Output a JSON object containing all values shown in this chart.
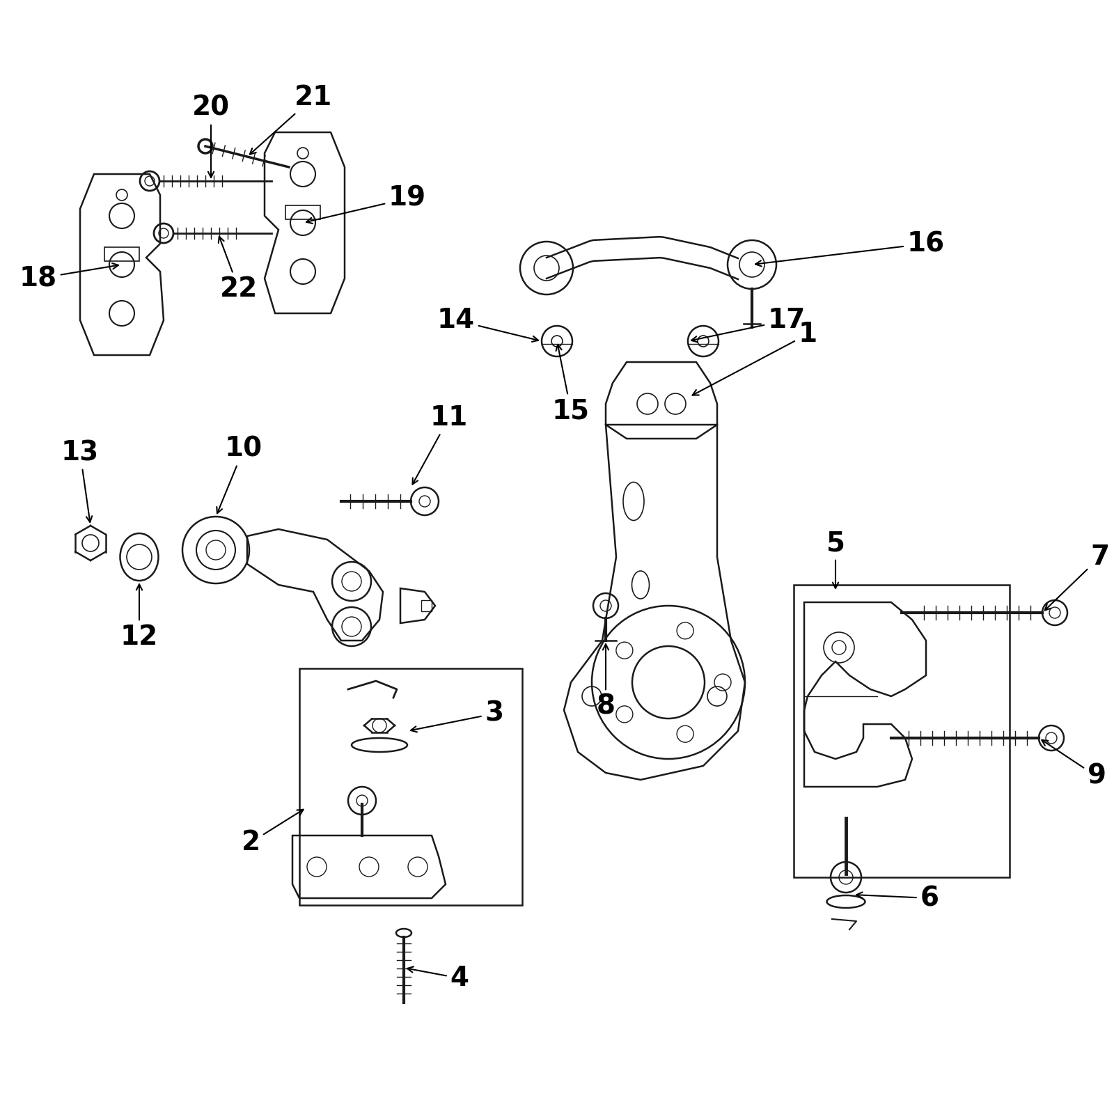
{
  "bg_color": "#ffffff",
  "line_color": "#1a1a1a",
  "text_color": "#000000",
  "fig_width": 16,
  "fig_height": 16
}
